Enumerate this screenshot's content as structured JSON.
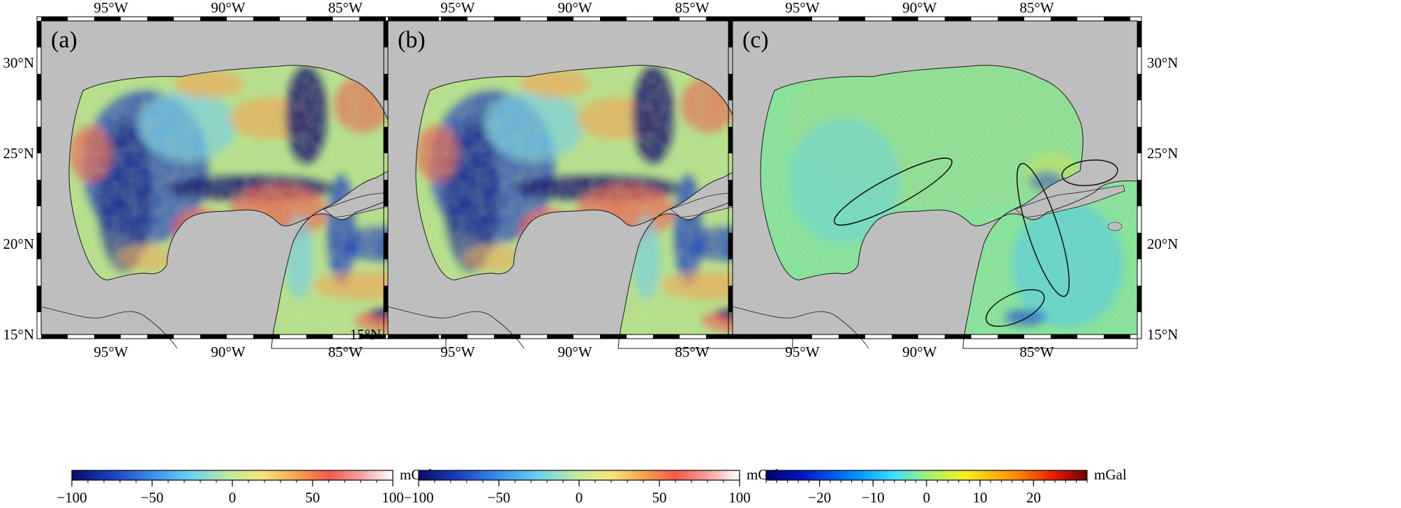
{
  "figure": {
    "panels": [
      {
        "id": "a",
        "label": "(a)",
        "lon_ticks": [
          "95°W",
          "90°W",
          "85°W"
        ],
        "lat_ticks": [
          "30°N",
          "25°N",
          "20°N",
          "15°N"
        ],
        "lat_side": "left",
        "colorbar": {
          "unit": "mGal",
          "ticks": [
            "−100",
            "−50",
            "0",
            "50",
            "100"
          ],
          "range": [
            -100,
            100
          ],
          "palette": "rainbow-white"
        }
      },
      {
        "id": "b",
        "label": "(b)",
        "lon_ticks": [
          "95°W",
          "90°W",
          "85°W"
        ],
        "lat_ticks": [
          "15°N"
        ],
        "lat_side": "left",
        "colorbar": {
          "unit": "mGal",
          "ticks": [
            "−100",
            "−50",
            "0",
            "50",
            "100"
          ],
          "range": [
            -100,
            100
          ],
          "palette": "rainbow-white"
        }
      },
      {
        "id": "c",
        "label": "(c)",
        "lon_ticks": [
          "95°W",
          "90°W",
          "85°W"
        ],
        "lat_ticks": [
          "30°N",
          "25°N",
          "20°N",
          "15°N"
        ],
        "lat_side": "right",
        "colorbar": {
          "unit": "mGal",
          "ticks": [
            "−20",
            "−10",
            "0",
            "10",
            "20"
          ],
          "range": [
            -30,
            30
          ],
          "palette": "jet"
        }
      }
    ],
    "colors": {
      "land": "#bebebe",
      "ocean_base": "#b6e38c",
      "coast": "#1a1a1a",
      "ellipse": "#111111"
    }
  }
}
